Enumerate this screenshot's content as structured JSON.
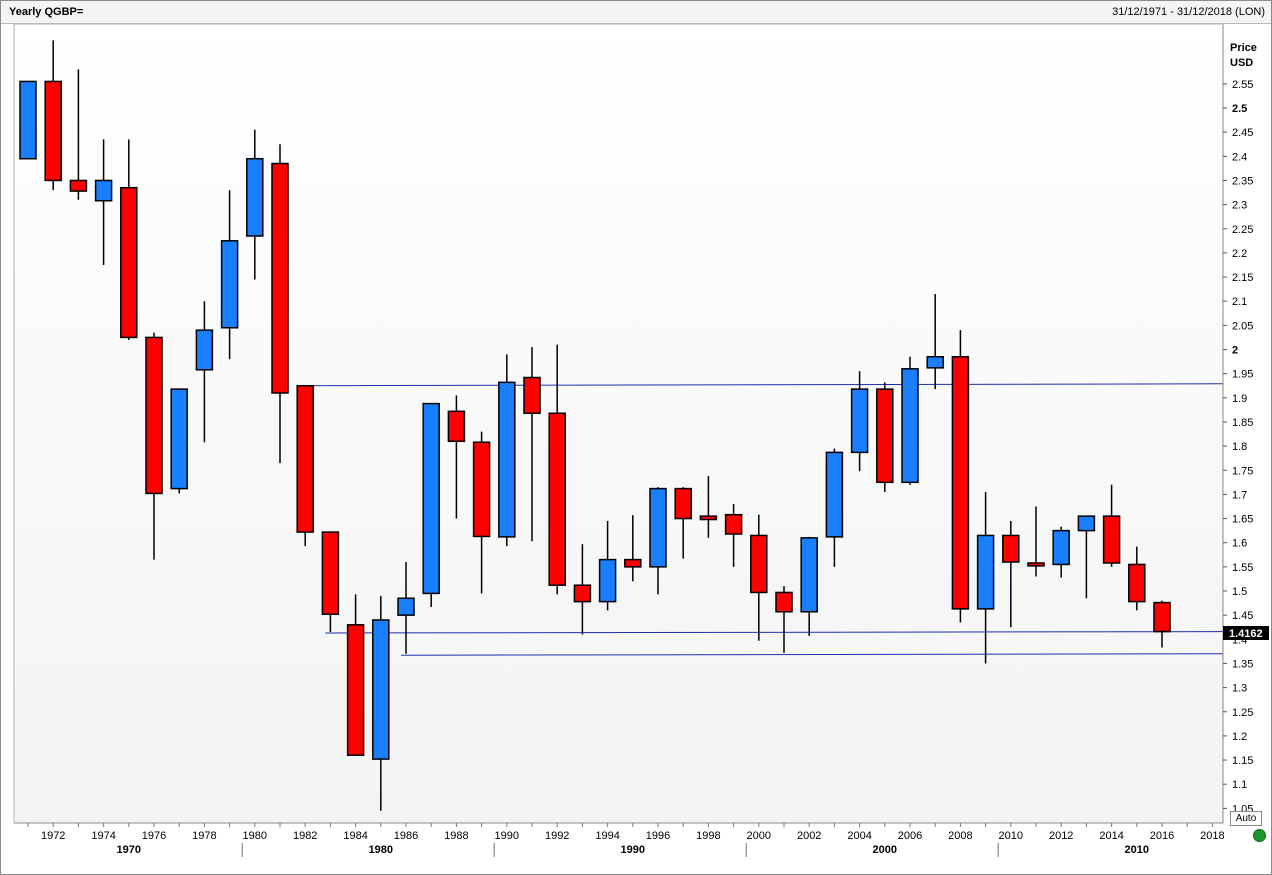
{
  "header": {
    "title": "Yearly QGBP=",
    "range": "31/12/1971 - 31/12/2018 (LON)"
  },
  "axis": {
    "price_label": "Price",
    "currency_label": "USD",
    "last_price_label": "1.4162",
    "auto_button": "Auto"
  },
  "colors": {
    "up": "#1a7fff",
    "down": "#ff0000",
    "trendline": "#1f2fb0",
    "background_top": "#ffffff",
    "background_bottom": "#f3f3f3",
    "status": "#1a9a2a"
  },
  "chart_data": {
    "type": "candlestick",
    "ylim": [
      1.0,
      2.6
    ],
    "y_ticks": [
      1.05,
      1.1,
      1.15,
      1.2,
      1.25,
      1.3,
      1.35,
      1.4,
      1.45,
      1.5,
      1.55,
      1.6,
      1.65,
      1.7,
      1.75,
      1.8,
      1.85,
      1.9,
      1.95,
      2.0,
      2.05,
      2.1,
      2.15,
      2.2,
      2.25,
      2.3,
      2.35,
      2.4,
      2.45,
      2.5,
      2.55
    ],
    "y_tick_labels": [
      "1.05",
      "1.1",
      "1.15",
      "1.2",
      "1.25",
      "1.3",
      "1.35",
      "1.4",
      "1.45",
      "1.5",
      "1.55",
      "1.6",
      "1.65",
      "1.7",
      "1.75",
      "1.8",
      "1.85",
      "1.9",
      "1.95",
      "2",
      "2.05",
      "2.1",
      "2.15",
      "2.2",
      "2.25",
      "2.3",
      "2.35",
      "2.4",
      "2.45",
      "2.5",
      "2.55"
    ],
    "x_ticks": [
      "1972",
      "1974",
      "1976",
      "1978",
      "1980",
      "1982",
      "1984",
      "1986",
      "1988",
      "1990",
      "1992",
      "1994",
      "1996",
      "1998",
      "2000",
      "2002",
      "2004",
      "2006",
      "2008",
      "2010",
      "2012",
      "2014",
      "2016",
      "2018"
    ],
    "decades": [
      "1970",
      "1980",
      "1990",
      "2000",
      "2010"
    ],
    "candles": [
      {
        "year": 1971,
        "open": 2.395,
        "high": 2.555,
        "low": 2.395,
        "close": 2.555
      },
      {
        "year": 1972,
        "open": 2.555,
        "high": 2.64,
        "low": 2.33,
        "close": 2.35
      },
      {
        "year": 1973,
        "open": 2.35,
        "high": 2.58,
        "low": 2.31,
        "close": 2.328
      },
      {
        "year": 1974,
        "open": 2.308,
        "high": 2.435,
        "low": 2.175,
        "close": 2.35
      },
      {
        "year": 1975,
        "open": 2.335,
        "high": 2.435,
        "low": 2.02,
        "close": 2.025
      },
      {
        "year": 1976,
        "open": 2.025,
        "high": 2.035,
        "low": 1.565,
        "close": 1.702
      },
      {
        "year": 1977,
        "open": 1.712,
        "high": 1.918,
        "low": 1.702,
        "close": 1.918
      },
      {
        "year": 1978,
        "open": 1.958,
        "high": 2.1,
        "low": 1.808,
        "close": 2.04
      },
      {
        "year": 1979,
        "open": 2.045,
        "high": 2.33,
        "low": 1.98,
        "close": 2.225
      },
      {
        "year": 1980,
        "open": 2.235,
        "high": 2.455,
        "low": 2.145,
        "close": 2.395
      },
      {
        "year": 1981,
        "open": 2.385,
        "high": 2.425,
        "low": 1.765,
        "close": 1.91
      },
      {
        "year": 1982,
        "open": 1.925,
        "high": 1.925,
        "low": 1.593,
        "close": 1.622
      },
      {
        "year": 1983,
        "open": 1.622,
        "high": 1.622,
        "low": 1.415,
        "close": 1.452
      },
      {
        "year": 1984,
        "open": 1.43,
        "high": 1.493,
        "low": 1.16,
        "close": 1.16
      },
      {
        "year": 1985,
        "open": 1.152,
        "high": 1.49,
        "low": 1.045,
        "close": 1.44
      },
      {
        "year": 1986,
        "open": 1.45,
        "high": 1.56,
        "low": 1.37,
        "close": 1.485
      },
      {
        "year": 1987,
        "open": 1.495,
        "high": 1.888,
        "low": 1.467,
        "close": 1.888
      },
      {
        "year": 1988,
        "open": 1.872,
        "high": 1.905,
        "low": 1.65,
        "close": 1.81
      },
      {
        "year": 1989,
        "open": 1.808,
        "high": 1.83,
        "low": 1.495,
        "close": 1.613
      },
      {
        "year": 1990,
        "open": 1.612,
        "high": 1.99,
        "low": 1.593,
        "close": 1.932
      },
      {
        "year": 1991,
        "open": 1.942,
        "high": 2.005,
        "low": 1.603,
        "close": 1.868
      },
      {
        "year": 1992,
        "open": 1.868,
        "high": 2.01,
        "low": 1.493,
        "close": 1.512
      },
      {
        "year": 1993,
        "open": 1.512,
        "high": 1.597,
        "low": 1.41,
        "close": 1.478
      },
      {
        "year": 1994,
        "open": 1.478,
        "high": 1.645,
        "low": 1.46,
        "close": 1.565
      },
      {
        "year": 1995,
        "open": 1.565,
        "high": 1.657,
        "low": 1.52,
        "close": 1.55
      },
      {
        "year": 1996,
        "open": 1.55,
        "high": 1.715,
        "low": 1.493,
        "close": 1.712
      },
      {
        "year": 1997,
        "open": 1.712,
        "high": 1.715,
        "low": 1.567,
        "close": 1.65
      },
      {
        "year": 1998,
        "open": 1.655,
        "high": 1.738,
        "low": 1.61,
        "close": 1.648
      },
      {
        "year": 1999,
        "open": 1.658,
        "high": 1.68,
        "low": 1.55,
        "close": 1.618
      },
      {
        "year": 2000,
        "open": 1.615,
        "high": 1.658,
        "low": 1.397,
        "close": 1.497
      },
      {
        "year": 2001,
        "open": 1.497,
        "high": 1.51,
        "low": 1.372,
        "close": 1.457
      },
      {
        "year": 2002,
        "open": 1.457,
        "high": 1.612,
        "low": 1.407,
        "close": 1.61
      },
      {
        "year": 2003,
        "open": 1.612,
        "high": 1.795,
        "low": 1.55,
        "close": 1.787
      },
      {
        "year": 2004,
        "open": 1.787,
        "high": 1.955,
        "low": 1.748,
        "close": 1.918
      },
      {
        "year": 2005,
        "open": 1.918,
        "high": 1.932,
        "low": 1.705,
        "close": 1.725
      },
      {
        "year": 2006,
        "open": 1.725,
        "high": 1.985,
        "low": 1.72,
        "close": 1.96
      },
      {
        "year": 2007,
        "open": 1.962,
        "high": 2.115,
        "low": 1.918,
        "close": 1.985
      },
      {
        "year": 2008,
        "open": 1.985,
        "high": 2.04,
        "low": 1.435,
        "close": 1.463
      },
      {
        "year": 2009,
        "open": 1.463,
        "high": 1.705,
        "low": 1.35,
        "close": 1.615
      },
      {
        "year": 2010,
        "open": 1.615,
        "high": 1.645,
        "low": 1.425,
        "close": 1.56
      },
      {
        "year": 2011,
        "open": 1.558,
        "high": 1.675,
        "low": 1.53,
        "close": 1.552
      },
      {
        "year": 2012,
        "open": 1.555,
        "high": 1.633,
        "low": 1.528,
        "close": 1.625
      },
      {
        "year": 2013,
        "open": 1.625,
        "high": 1.655,
        "low": 1.485,
        "close": 1.655
      },
      {
        "year": 2014,
        "open": 1.655,
        "high": 1.72,
        "low": 1.55,
        "close": 1.558
      },
      {
        "year": 2015,
        "open": 1.555,
        "high": 1.592,
        "low": 1.46,
        "close": 1.478
      },
      {
        "year": 2016,
        "open": 1.476,
        "high": 1.48,
        "low": 1.383,
        "close": 1.416
      }
    ],
    "trendlines": [
      {
        "x1": 1981.8,
        "y1": 1.925,
        "x2": 2018.5,
        "y2": 1.929
      },
      {
        "x1": 1982.8,
        "y1": 1.413,
        "x2": 2018.5,
        "y2": 1.416
      },
      {
        "x1": 1985.8,
        "y1": 1.367,
        "x2": 2018.5,
        "y2": 1.37
      }
    ]
  }
}
